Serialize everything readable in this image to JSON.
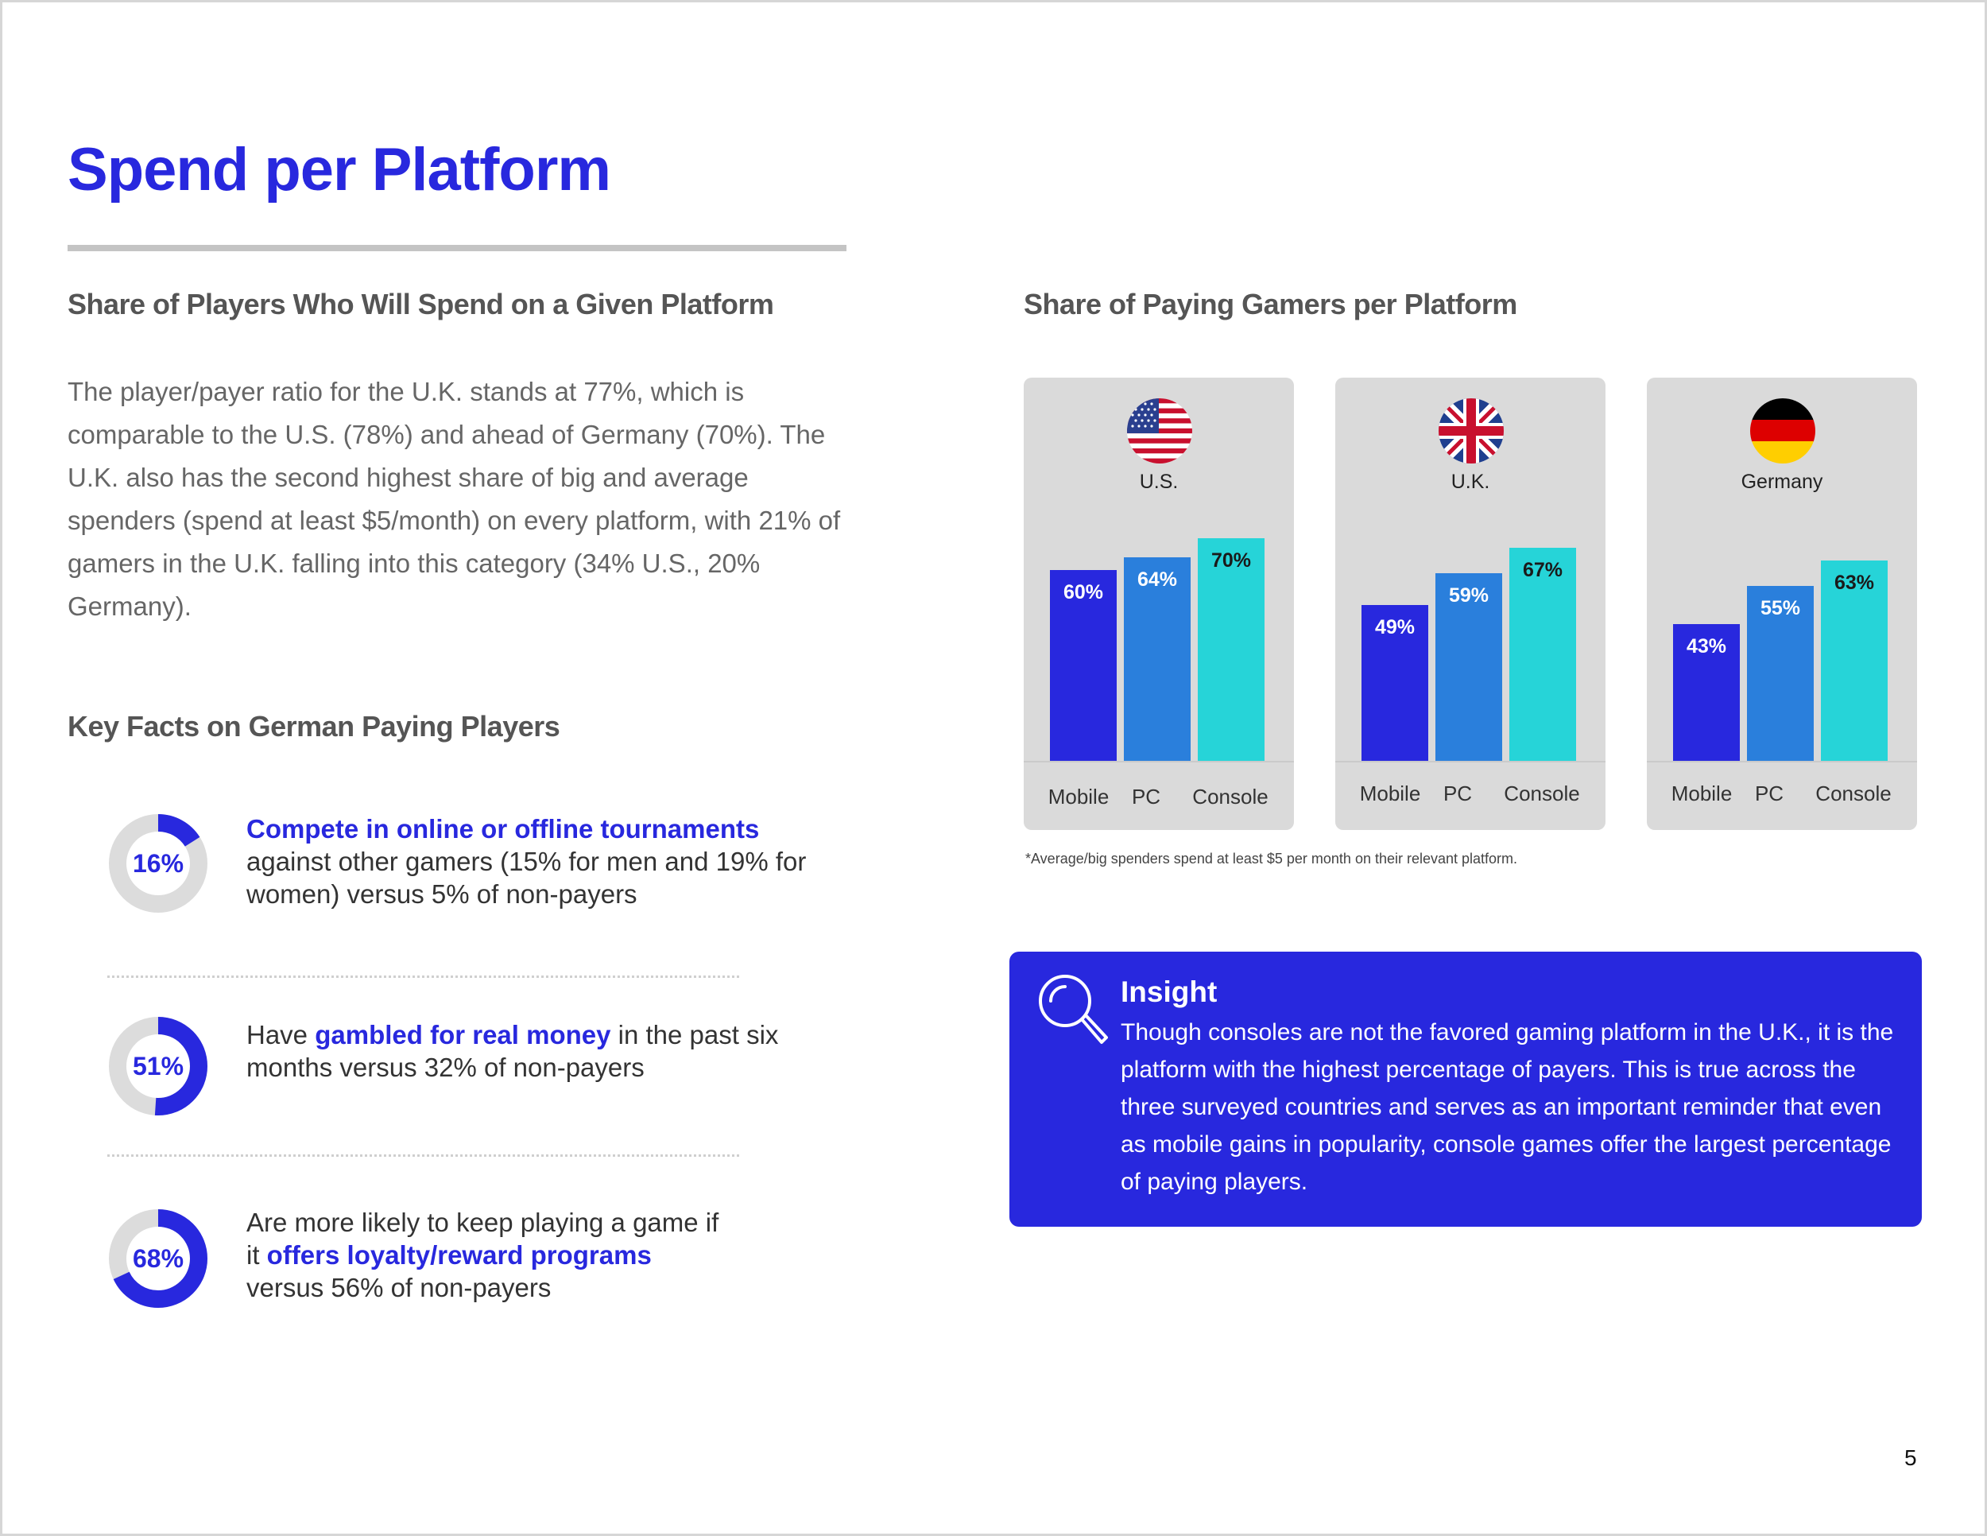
{
  "title": "Spend per Platform",
  "left": {
    "heading": "Share of Players Who Will Spend on a Given Platform",
    "intro": "The player/payer ratio for the U.K. stands at 77%, which is comparable to the U.S. (78%) and ahead of Germany (70%). The U.K. also has the second highest share of big and average spenders (spend at least $5/month) on every platform, with 21% of gamers in the U.K. falling into this category (34% U.S., 20% Germany).",
    "facts_heading": "Key Facts on German Paying Players",
    "facts": [
      {
        "pct": "16%",
        "value": 16,
        "pre": "",
        "highlight": "Compete in online or offline tournaments",
        "post": " against other gamers (15% for men and 19% for women) versus 5% of non-payers"
      },
      {
        "pct": "51%",
        "value": 51,
        "pre": "Have ",
        "highlight": "gambled for real money",
        "post": " in the past six months versus 32% of non-payers"
      },
      {
        "pct": "68%",
        "value": 68,
        "pre": "Are more likely to keep playing a game if it ",
        "highlight": "offers loyalty/reward programs",
        "post": " versus 56% of non-payers"
      }
    ]
  },
  "right": {
    "heading": "Share of Paying Gamers per Platform",
    "footnote": "*Average/big spenders spend at least $5 per month on their relevant platform."
  },
  "chart_data": {
    "type": "bar",
    "categories": [
      "Mobile",
      "PC",
      "Console"
    ],
    "groups": [
      {
        "country": "U.S.",
        "flag": "us-flag-icon",
        "values": [
          60,
          64,
          70
        ],
        "labels": [
          "60%",
          "64%",
          "70%"
        ]
      },
      {
        "country": "U.K.",
        "flag": "uk-flag-icon",
        "values": [
          49,
          59,
          67
        ],
        "labels": [
          "49%",
          "59%",
          "67%"
        ]
      },
      {
        "country": "Germany",
        "flag": "germany-flag-icon",
        "values": [
          43,
          55,
          63
        ],
        "labels": [
          "43%",
          "55%",
          "63%"
        ]
      }
    ],
    "colors": [
      "#2828de",
      "#2a7fdc",
      "#26d4d8"
    ],
    "label_colors": [
      "#ffffff",
      "#ffffff",
      "#1a1a1a"
    ]
  },
  "insight": {
    "icon": "magnifier-icon",
    "title": "Insight",
    "body": "Though consoles are not the favored gaming platform in the U.K., it is the platform with the highest percentage of payers. This is true across the three surveyed countries and serves as an important reminder that even as mobile gains in popularity, console games offer the largest percentage of paying players."
  },
  "page_number": "5",
  "colors": {
    "accent": "#2828de",
    "ring_track": "#dcdcdc"
  }
}
